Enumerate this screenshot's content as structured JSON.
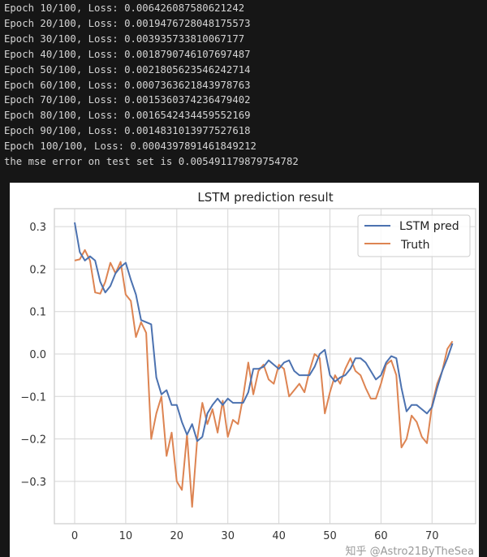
{
  "terminal": {
    "lines": [
      "Epoch 10/100, Loss: 0.006426087580621242",
      "Epoch 20/100, Loss: 0.0019476728048175573",
      "Epoch 30/100, Loss: 0.003935733810067177",
      "Epoch 40/100, Loss: 0.0018790746107697487",
      "Epoch 50/100, Loss: 0.0021805623546242714",
      "Epoch 60/100, Loss: 0.0007363621843978763",
      "Epoch 70/100, Loss: 0.0015360374236479402",
      "Epoch 80/100, Loss: 0.0016542434459552169",
      "Epoch 90/100, Loss: 0.0014831013977527618",
      "Epoch 100/100, Loss: 0.0004397891461849212",
      "the mse error on test set is 0.005491179879754782"
    ]
  },
  "watermark": "知乎 @Astro21ByTheSea",
  "chart_data": {
    "type": "line",
    "title": "LSTM prediction result",
    "xlim": [
      -4,
      78
    ],
    "ylim": [
      -0.39,
      0.345
    ],
    "xticks": [
      0,
      10,
      20,
      30,
      40,
      50,
      60,
      70
    ],
    "yticks": [
      0.3,
      0.2,
      0.1,
      0.0,
      -0.1,
      -0.2,
      -0.3
    ],
    "ytick_labels": [
      "0.3",
      "0.2",
      "0.1",
      "0.0",
      "−0.1",
      "−0.2",
      "−0.3"
    ],
    "grid": true,
    "legend_position": "top-right",
    "series": [
      {
        "name": "LSTM pred",
        "color": "#4c72b0",
        "values": [
          0.31,
          0.24,
          0.22,
          0.23,
          0.22,
          0.17,
          0.145,
          0.16,
          0.19,
          0.205,
          0.215,
          0.175,
          0.14,
          0.08,
          0.075,
          0.07,
          -0.055,
          -0.095,
          -0.085,
          -0.12,
          -0.12,
          -0.16,
          -0.19,
          -0.165,
          -0.205,
          -0.195,
          -0.14,
          -0.12,
          -0.105,
          -0.12,
          -0.105,
          -0.115,
          -0.115,
          -0.115,
          -0.09,
          -0.035,
          -0.035,
          -0.03,
          -0.015,
          -0.025,
          -0.035,
          -0.02,
          -0.015,
          -0.04,
          -0.05,
          -0.05,
          -0.05,
          -0.03,
          0.0,
          0.01,
          -0.05,
          -0.065,
          -0.055,
          -0.05,
          -0.035,
          -0.01,
          -0.01,
          -0.02,
          -0.04,
          -0.06,
          -0.05,
          -0.02,
          -0.005,
          -0.01,
          -0.08,
          -0.135,
          -0.12,
          -0.12,
          -0.13,
          -0.14,
          -0.125,
          -0.08,
          -0.04,
          -0.01,
          0.025
        ]
      },
      {
        "name": "Truth",
        "color": "#dd8452",
        "values": [
          0.22,
          0.223,
          0.245,
          0.22,
          0.145,
          0.142,
          0.17,
          0.215,
          0.19,
          0.217,
          0.14,
          0.125,
          0.04,
          0.075,
          0.05,
          -0.2,
          -0.14,
          -0.1,
          -0.24,
          -0.185,
          -0.3,
          -0.32,
          -0.19,
          -0.36,
          -0.2,
          -0.115,
          -0.165,
          -0.13,
          -0.185,
          -0.11,
          -0.195,
          -0.155,
          -0.165,
          -0.1,
          -0.02,
          -0.095,
          -0.04,
          -0.025,
          -0.06,
          -0.07,
          -0.025,
          -0.035,
          -0.1,
          -0.085,
          -0.07,
          -0.09,
          -0.04,
          0.0,
          -0.01,
          -0.14,
          -0.09,
          -0.05,
          -0.07,
          -0.035,
          -0.01,
          -0.04,
          -0.05,
          -0.08,
          -0.105,
          -0.105,
          -0.07,
          -0.025,
          -0.015,
          -0.05,
          -0.22,
          -0.2,
          -0.145,
          -0.16,
          -0.195,
          -0.21,
          -0.12,
          -0.07,
          -0.04,
          0.012,
          0.03
        ]
      }
    ]
  }
}
